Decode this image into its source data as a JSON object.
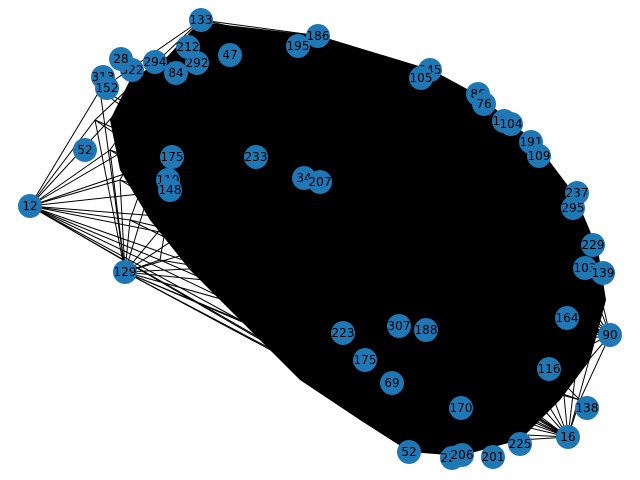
{
  "graph": {
    "type": "network",
    "node_color": "#1f77b4",
    "edge_color": "#000000",
    "background": "#ffffff",
    "description_hidden": "dense undirected network drawn with circular nodes",
    "nodes": [
      {
        "id": "133"
      },
      {
        "id": "186"
      },
      {
        "id": "195"
      },
      {
        "id": "245"
      },
      {
        "id": "105"
      },
      {
        "id": "86"
      },
      {
        "id": "76"
      },
      {
        "id": "159"
      },
      {
        "id": "104"
      },
      {
        "id": "191"
      },
      {
        "id": "109"
      },
      {
        "id": "164"
      },
      {
        "id": "237"
      },
      {
        "id": "295"
      },
      {
        "id": "229"
      },
      {
        "id": "103"
      },
      {
        "id": "139"
      },
      {
        "id": "90"
      },
      {
        "id": "116"
      },
      {
        "id": "138"
      },
      {
        "id": "16"
      },
      {
        "id": "225"
      },
      {
        "id": "201"
      },
      {
        "id": "220"
      },
      {
        "id": "206"
      },
      {
        "id": "52"
      },
      {
        "id": "170"
      },
      {
        "id": "223"
      },
      {
        "id": "307"
      },
      {
        "id": "188"
      },
      {
        "id": "175"
      },
      {
        "id": "69"
      },
      {
        "id": "129"
      },
      {
        "id": "12"
      },
      {
        "id": "233"
      },
      {
        "id": "34"
      },
      {
        "id": "207"
      },
      {
        "id": "313"
      },
      {
        "id": "152"
      },
      {
        "id": "84"
      },
      {
        "id": "52"
      },
      {
        "id": "292"
      },
      {
        "id": "47"
      },
      {
        "id": "175"
      },
      {
        "id": "119"
      },
      {
        "id": "148"
      },
      {
        "id": "322"
      },
      {
        "id": "294"
      },
      {
        "id": "28"
      },
      {
        "id": "212"
      }
    ]
  }
}
